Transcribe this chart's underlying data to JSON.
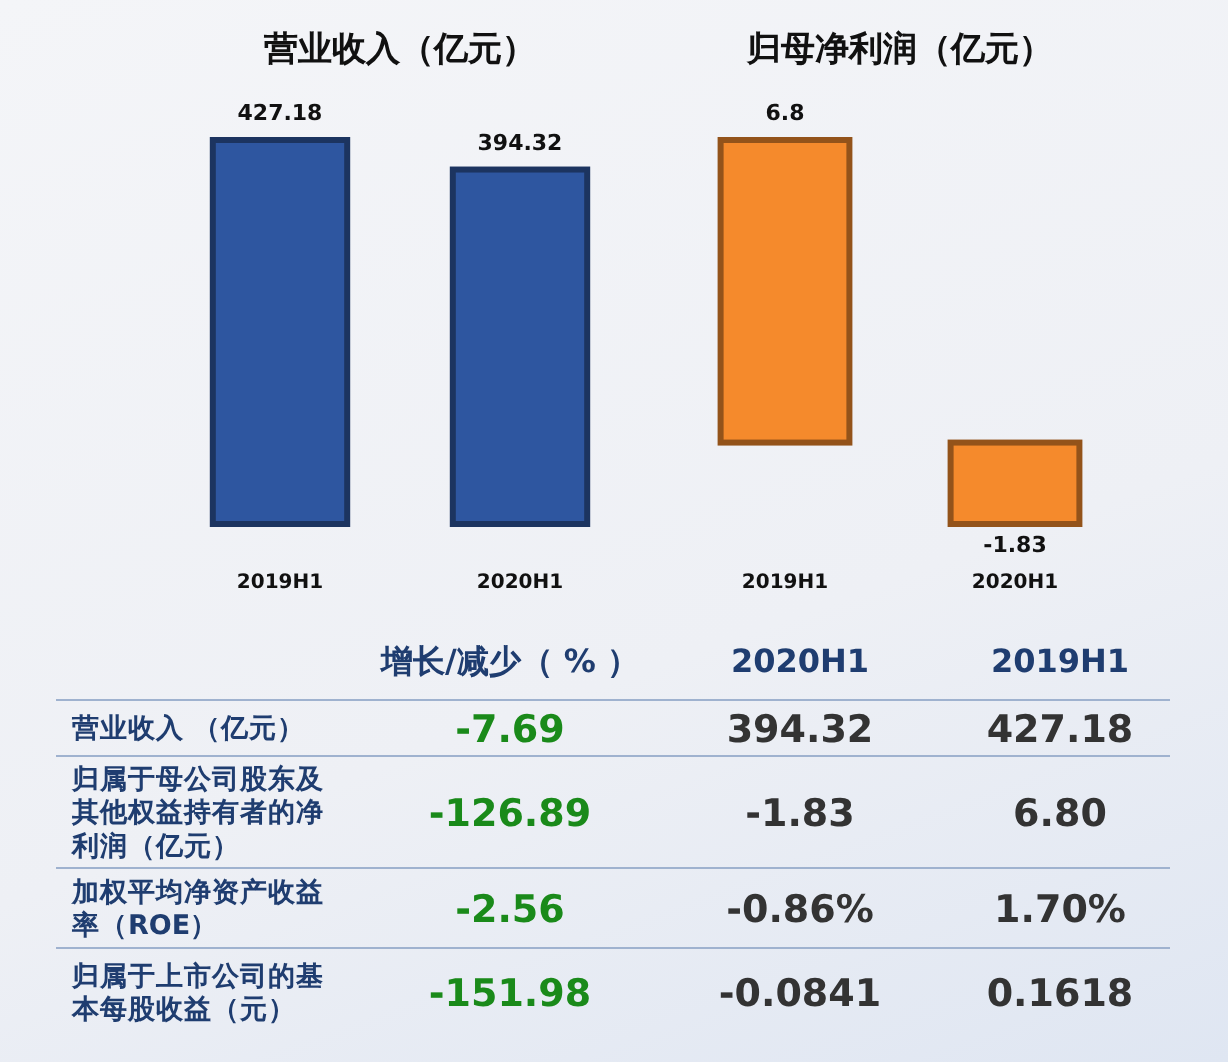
{
  "chart_data": [
    {
      "type": "bar",
      "title": "营业收入（亿元）",
      "categories": [
        "2019H1",
        "2020H1"
      ],
      "values": [
        427.18,
        394.32
      ],
      "color": "#2e56a0",
      "data_labels": true,
      "relative": false
    },
    {
      "type": "bar",
      "title": "归母净利润（亿元）",
      "categories": [
        "2019H1",
        "2020H1"
      ],
      "values": [
        6.8,
        -1.83
      ],
      "color": "#f58a2c",
      "data_labels": true,
      "relative": false
    },
    {
      "type": "heatmap",
      "categories": [
        "增长/减少（ % ）",
        "2020H1",
        "2019H1"
      ],
      "y_categories": [
        "营业收入 （亿元）",
        "归属于母公司股东及其他权益持有者的净利润（亿元）",
        "加权平均净资产收益率（ROE）",
        "归属于上市公司的基本每股收益（元）"
      ],
      "cells": [
        [
          -7.69,
          394.32,
          427.18
        ],
        [
          -126.89,
          -1.83,
          6.8
        ],
        [
          -2.56,
          -0.86,
          1.7
        ],
        [
          -151.98,
          -0.0841,
          0.1618
        ]
      ],
      "cell_labels": [
        [
          "-7.69",
          "394.32",
          "427.18"
        ],
        [
          "-126.89",
          "-1.83",
          "6.80"
        ],
        [
          "-2.56",
          "-0.86%",
          "1.70%"
        ],
        [
          "-151.98",
          "-0.0841",
          "0.1618"
        ]
      ]
    }
  ]
}
